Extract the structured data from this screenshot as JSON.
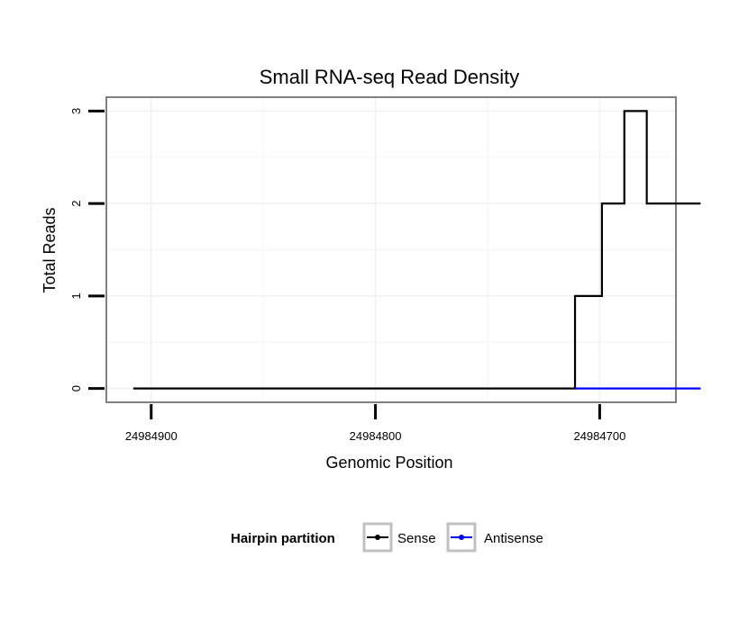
{
  "chart_data": {
    "type": "line",
    "title": "Small RNA-seq Read Density",
    "xlabel": "Genomic Position",
    "ylabel": "Total Reads",
    "x_reversed": true,
    "xlim": [
      24984920,
      24984666
    ],
    "ylim": [
      -0.15,
      3.15
    ],
    "x_ticks": [
      24984900,
      24984800,
      24984700
    ],
    "x_tick_labels": [
      "24984900",
      "24984800",
      "24984700"
    ],
    "y_ticks": [
      0,
      1,
      2,
      3
    ],
    "y_tick_labels": [
      "0",
      "1",
      "2",
      "3"
    ],
    "grid": true,
    "legend": {
      "title": "Hairpin partition",
      "placement": "bottom"
    },
    "series": [
      {
        "name": "Sense",
        "color": "#000000",
        "step": true,
        "x": [
          24984908,
          24984711,
          24984711,
          24984699,
          24984699,
          24984689,
          24984689,
          24984679,
          24984679,
          24984668,
          24984668,
          24984655
        ],
        "values": [
          0,
          0,
          1,
          1,
          2,
          2,
          3,
          3,
          2,
          2,
          2,
          2
        ]
      },
      {
        "name": "Antisense",
        "color": "#0000ff",
        "step": true,
        "x": [
          24984711,
          24984655
        ],
        "values": [
          0,
          0
        ]
      }
    ]
  }
}
